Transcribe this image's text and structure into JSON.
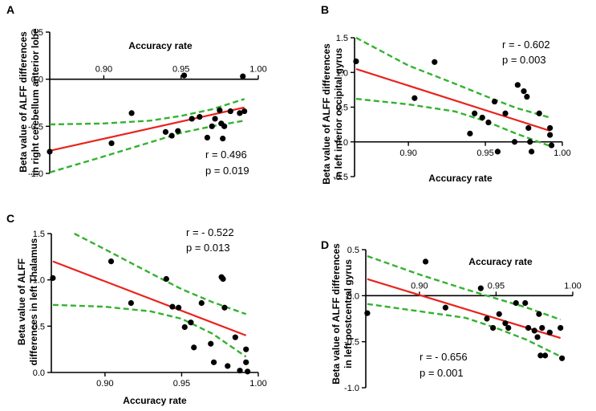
{
  "colors": {
    "axis": "#000000",
    "point": "#000000",
    "fit_line": "#e8231e",
    "confidence_band": "#33b22e"
  },
  "chart_data": [
    {
      "panel": "A",
      "type": "scatter",
      "xlabel": "Accuracy rate",
      "ylabel_lines": [
        "Beta value of ALFF differences",
        "in right cerebellum anterior lobe"
      ],
      "x_axis_position": "top (at y = 0)",
      "xlim": [
        0.865,
        1.0
      ],
      "ylim": [
        -1.0,
        0.5
      ],
      "xticks": [
        0.9,
        0.95,
        1.0
      ],
      "xtick_labels": [
        "0.90",
        "0.95",
        "1.00"
      ],
      "yticks": [
        -1.0,
        -0.5,
        0.0,
        0.5
      ],
      "ytick_labels": [
        "-1.0",
        "-0.5",
        "0.0",
        "0.5"
      ],
      "annotation": [
        "r = 0.496",
        "p = 0.019"
      ],
      "points": [
        [
          0.865,
          -0.77
        ],
        [
          0.905,
          -0.68
        ],
        [
          0.918,
          -0.36
        ],
        [
          0.94,
          -0.56
        ],
        [
          0.944,
          -0.6
        ],
        [
          0.948,
          -0.55
        ],
        [
          0.952,
          0.04
        ],
        [
          0.957,
          -0.42
        ],
        [
          0.962,
          -0.4
        ],
        [
          0.967,
          -0.62
        ],
        [
          0.97,
          -0.5
        ],
        [
          0.972,
          -0.42
        ],
        [
          0.975,
          -0.33
        ],
        [
          0.976,
          -0.47
        ],
        [
          0.977,
          -0.63
        ],
        [
          0.978,
          -0.5
        ],
        [
          0.982,
          -0.34
        ],
        [
          0.988,
          -0.36
        ],
        [
          0.99,
          0.03
        ],
        [
          0.991,
          -0.34
        ]
      ],
      "fit_line": [
        [
          0.865,
          -0.76
        ],
        [
          0.991,
          -0.3
        ]
      ],
      "ci_upper": [
        [
          0.865,
          -0.48
        ],
        [
          0.9,
          -0.47
        ],
        [
          0.93,
          -0.44
        ],
        [
          0.95,
          -0.39
        ],
        [
          0.97,
          -0.32
        ],
        [
          0.991,
          -0.21
        ]
      ],
      "ci_lower": [
        [
          0.865,
          -0.99
        ],
        [
          0.9,
          -0.82
        ],
        [
          0.93,
          -0.67
        ],
        [
          0.95,
          -0.57
        ],
        [
          0.97,
          -0.5
        ],
        [
          0.991,
          -0.44
        ]
      ]
    },
    {
      "panel": "B",
      "type": "scatter",
      "xlabel": "Accuracy rate",
      "ylabel_lines": [
        "Beta value of ALFF differences",
        "in left inferior occipital gyrus"
      ],
      "x_axis_position": "at y = 0",
      "xlim": [
        0.865,
        1.0
      ],
      "ylim": [
        -0.5,
        1.5
      ],
      "xticks": [
        0.9,
        0.95,
        1.0
      ],
      "xtick_labels": [
        "0.90",
        "0.95",
        "1.00"
      ],
      "yticks": [
        -0.5,
        0.0,
        0.5,
        1.0,
        1.5
      ],
      "ytick_labels": [
        "-0.5",
        "0.0",
        "0.5",
        "1.0",
        "1.5"
      ],
      "annotation": [
        "r = - 0.602",
        "p = 0.003"
      ],
      "points": [
        [
          0.866,
          1.16
        ],
        [
          0.904,
          0.63
        ],
        [
          0.917,
          1.15
        ],
        [
          0.94,
          0.12
        ],
        [
          0.943,
          0.41
        ],
        [
          0.948,
          0.35
        ],
        [
          0.952,
          0.28
        ],
        [
          0.956,
          0.58
        ],
        [
          0.958,
          -0.14
        ],
        [
          0.963,
          0.41
        ],
        [
          0.969,
          0.0
        ],
        [
          0.971,
          0.82
        ],
        [
          0.975,
          0.73
        ],
        [
          0.977,
          0.65
        ],
        [
          0.978,
          0.2
        ],
        [
          0.979,
          0.0
        ],
        [
          0.98,
          -0.14
        ],
        [
          0.985,
          0.41
        ],
        [
          0.992,
          0.2
        ],
        [
          0.992,
          0.1
        ],
        [
          0.993,
          -0.05
        ]
      ],
      "fit_line": [
        [
          0.866,
          1.05
        ],
        [
          0.992,
          0.16
        ]
      ],
      "ci_upper": [
        [
          0.866,
          1.5
        ],
        [
          0.9,
          1.1
        ],
        [
          0.93,
          0.84
        ],
        [
          0.95,
          0.66
        ],
        [
          0.97,
          0.49
        ],
        [
          0.992,
          0.35
        ]
      ],
      "ci_lower": [
        [
          0.866,
          0.62
        ],
        [
          0.9,
          0.54
        ],
        [
          0.93,
          0.44
        ],
        [
          0.95,
          0.3
        ],
        [
          0.97,
          0.12
        ],
        [
          0.992,
          -0.06
        ]
      ]
    },
    {
      "panel": "C",
      "type": "scatter",
      "xlabel": "Accuracy rate",
      "ylabel_lines": [
        "Beta value of ALFF",
        "differences in left Thalamus"
      ],
      "x_axis_position": "bottom (at y = 0)",
      "xlim": [
        0.865,
        1.0
      ],
      "ylim": [
        0.0,
        1.5
      ],
      "xticks": [
        0.9,
        0.95,
        1.0
      ],
      "xtick_labels": [
        "0.90",
        "0.95",
        "1.00"
      ],
      "yticks": [
        0.0,
        0.5,
        1.0,
        1.5
      ],
      "ytick_labels": [
        "0.0",
        "0.5",
        "1.0",
        "1.5"
      ],
      "annotation": [
        "r = - 0.522",
        "p = 0.013"
      ],
      "points": [
        [
          0.866,
          1.02
        ],
        [
          0.904,
          1.2
        ],
        [
          0.917,
          0.75
        ],
        [
          0.94,
          1.01
        ],
        [
          0.944,
          0.71
        ],
        [
          0.948,
          0.7
        ],
        [
          0.952,
          0.49
        ],
        [
          0.956,
          0.54
        ],
        [
          0.958,
          0.27
        ],
        [
          0.963,
          0.75
        ],
        [
          0.969,
          0.31
        ],
        [
          0.971,
          0.11
        ],
        [
          0.976,
          1.03
        ],
        [
          0.977,
          1.01
        ],
        [
          0.978,
          0.7
        ],
        [
          0.98,
          0.07
        ],
        [
          0.985,
          0.38
        ],
        [
          0.988,
          0.02
        ],
        [
          0.992,
          0.25
        ],
        [
          0.992,
          0.11
        ],
        [
          0.993,
          0.01
        ]
      ],
      "fit_line": [
        [
          0.866,
          1.2
        ],
        [
          0.992,
          0.4
        ]
      ],
      "ci_upper": [
        [
          0.88,
          1.5
        ],
        [
          0.9,
          1.33
        ],
        [
          0.93,
          1.07
        ],
        [
          0.95,
          0.9
        ],
        [
          0.97,
          0.76
        ],
        [
          0.992,
          0.63
        ]
      ],
      "ci_lower": [
        [
          0.866,
          0.73
        ],
        [
          0.9,
          0.71
        ],
        [
          0.93,
          0.66
        ],
        [
          0.95,
          0.58
        ],
        [
          0.97,
          0.42
        ],
        [
          0.992,
          0.17
        ]
      ]
    },
    {
      "panel": "D",
      "type": "scatter",
      "xlabel": "Accuracy rate",
      "ylabel_lines": [
        "Beta value of ALFF differences",
        "in left postcentral gyrus"
      ],
      "x_axis_position": "top (at y = 0)",
      "xlim": [
        0.865,
        1.0
      ],
      "ylim": [
        -1.0,
        0.5
      ],
      "xticks": [
        0.9,
        0.95,
        1.0
      ],
      "xtick_labels": [
        "0.90",
        "0.95",
        "1.00"
      ],
      "yticks": [
        -1.0,
        -0.5,
        0.0,
        0.5
      ],
      "ytick_labels": [
        "-1.0",
        "-0.5",
        "0.0",
        "0.5"
      ],
      "annotation": [
        "r = - 0.656",
        "p = 0.001"
      ],
      "points": [
        [
          0.866,
          -0.19
        ],
        [
          0.904,
          0.37
        ],
        [
          0.917,
          -0.13
        ],
        [
          0.94,
          0.08
        ],
        [
          0.944,
          -0.25
        ],
        [
          0.948,
          -0.35
        ],
        [
          0.952,
          -0.2
        ],
        [
          0.956,
          -0.3
        ],
        [
          0.958,
          -0.35
        ],
        [
          0.963,
          -0.08
        ],
        [
          0.969,
          -0.08
        ],
        [
          0.971,
          -0.35
        ],
        [
          0.975,
          -0.38
        ],
        [
          0.977,
          -0.45
        ],
        [
          0.978,
          -0.2
        ],
        [
          0.979,
          -0.65
        ],
        [
          0.98,
          -0.35
        ],
        [
          0.982,
          -0.65
        ],
        [
          0.985,
          -0.4
        ],
        [
          0.992,
          -0.35
        ],
        [
          0.993,
          -0.68
        ]
      ],
      "fit_line": [
        [
          0.866,
          0.18
        ],
        [
          0.992,
          -0.46
        ]
      ],
      "ci_upper": [
        [
          0.866,
          0.43
        ],
        [
          0.9,
          0.23
        ],
        [
          0.93,
          0.07
        ],
        [
          0.95,
          -0.03
        ],
        [
          0.97,
          -0.13
        ],
        [
          0.992,
          -0.26
        ]
      ],
      "ci_lower": [
        [
          0.866,
          -0.09
        ],
        [
          0.9,
          -0.17
        ],
        [
          0.93,
          -0.24
        ],
        [
          0.95,
          -0.35
        ],
        [
          0.97,
          -0.48
        ],
        [
          0.992,
          -0.66
        ]
      ]
    }
  ]
}
